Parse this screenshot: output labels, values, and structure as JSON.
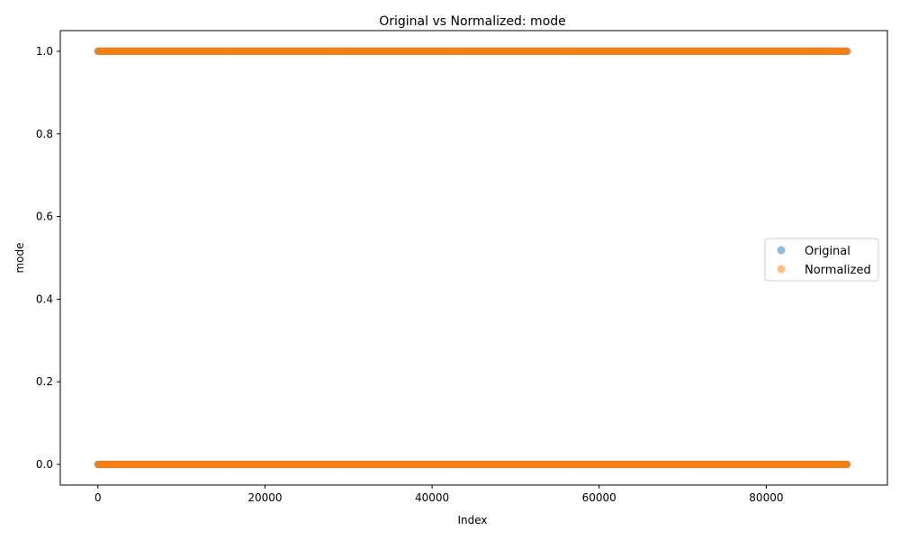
{
  "chart_data": {
    "type": "scatter",
    "title": "Original vs Normalized: mode",
    "xlabel": "Index",
    "ylabel": "mode",
    "xlim": [
      -4500,
      94500
    ],
    "ylim": [
      -0.05,
      1.05
    ],
    "x_ticks": [
      0,
      20000,
      40000,
      60000,
      80000
    ],
    "x_tick_labels": [
      "0",
      "20000",
      "40000",
      "60000",
      "80000"
    ],
    "y_ticks": [
      0.0,
      0.2,
      0.4,
      0.6,
      0.8,
      1.0
    ],
    "y_tick_labels": [
      "0.0",
      "0.2",
      "0.4",
      "0.6",
      "0.8",
      "1.0"
    ],
    "x_range": [
      0,
      89740
    ],
    "y_levels": [
      0,
      1
    ],
    "grid": false,
    "legend_position": "center-right",
    "series": [
      {
        "name": "Original",
        "color": "#1f77b4",
        "alpha": 0.5,
        "y_levels": [
          0,
          1
        ]
      },
      {
        "name": "Normalized",
        "color": "#ff7f0e",
        "alpha": 0.5,
        "y_levels": [
          0,
          1
        ]
      }
    ]
  }
}
